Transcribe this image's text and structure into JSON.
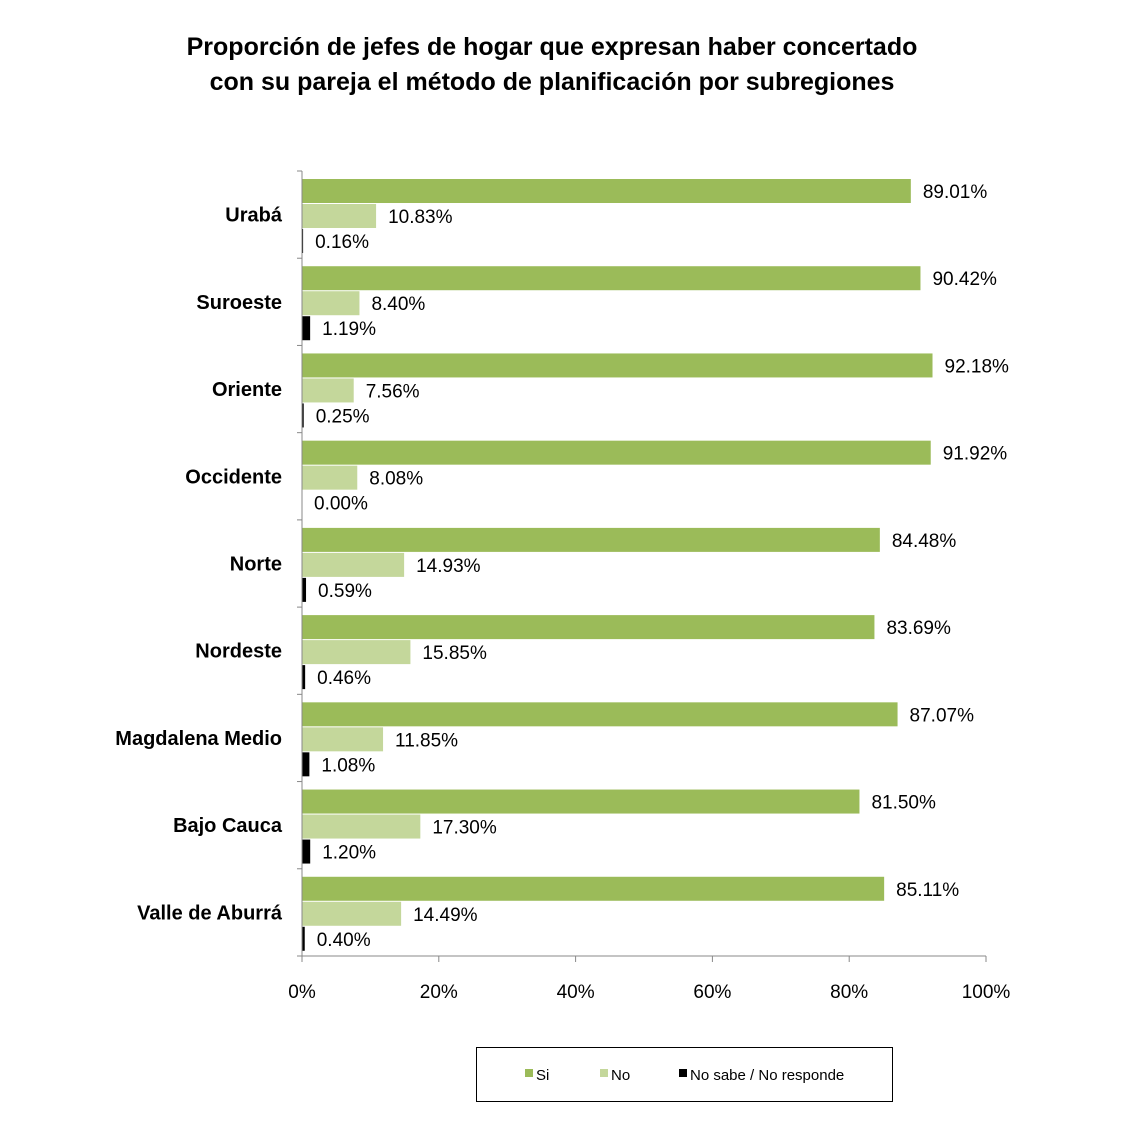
{
  "chart_data": {
    "type": "bar",
    "orientation": "horizontal",
    "title": "Proporción de jefes de hogar que expresan haber concertado\ncon su pareja el método de planificación por subregiones",
    "categories": [
      "Urabá",
      "Suroeste",
      "Oriente",
      "Occidente",
      "Norte",
      "Nordeste",
      "Magdalena Medio",
      "Bajo Cauca",
      "Valle de Aburrá"
    ],
    "series": [
      {
        "name": "Si",
        "color": "#9BBB59",
        "values": [
          89.01,
          90.42,
          92.18,
          91.92,
          84.48,
          83.69,
          87.07,
          81.5,
          85.11
        ],
        "labels": [
          "89.01%",
          "90.42%",
          "92.18%",
          "91.92%",
          "84.48%",
          "83.69%",
          "87.07%",
          "81.50%",
          "85.11%"
        ]
      },
      {
        "name": "No",
        "color": "#C4D79B",
        "values": [
          10.83,
          8.4,
          7.56,
          8.08,
          14.93,
          15.85,
          11.85,
          17.3,
          14.49
        ],
        "labels": [
          "10.83%",
          "8.40%",
          "7.56%",
          "8.08%",
          "14.93%",
          "15.85%",
          "11.85%",
          "17.30%",
          "14.49%"
        ]
      },
      {
        "name": "No sabe / No responde",
        "color": "#000000",
        "values": [
          0.16,
          1.19,
          0.25,
          0.0,
          0.59,
          0.46,
          1.08,
          1.2,
          0.4
        ],
        "labels": [
          "0.16%",
          "1.19%",
          "0.25%",
          "0.00%",
          "0.59%",
          "0.46%",
          "1.08%",
          "1.20%",
          "0.40%"
        ]
      }
    ],
    "xlim": [
      0,
      100
    ],
    "xticks": [
      "0%",
      "20%",
      "40%",
      "60%",
      "80%",
      "100%"
    ],
    "grid": false,
    "legend_position": "bottom"
  }
}
